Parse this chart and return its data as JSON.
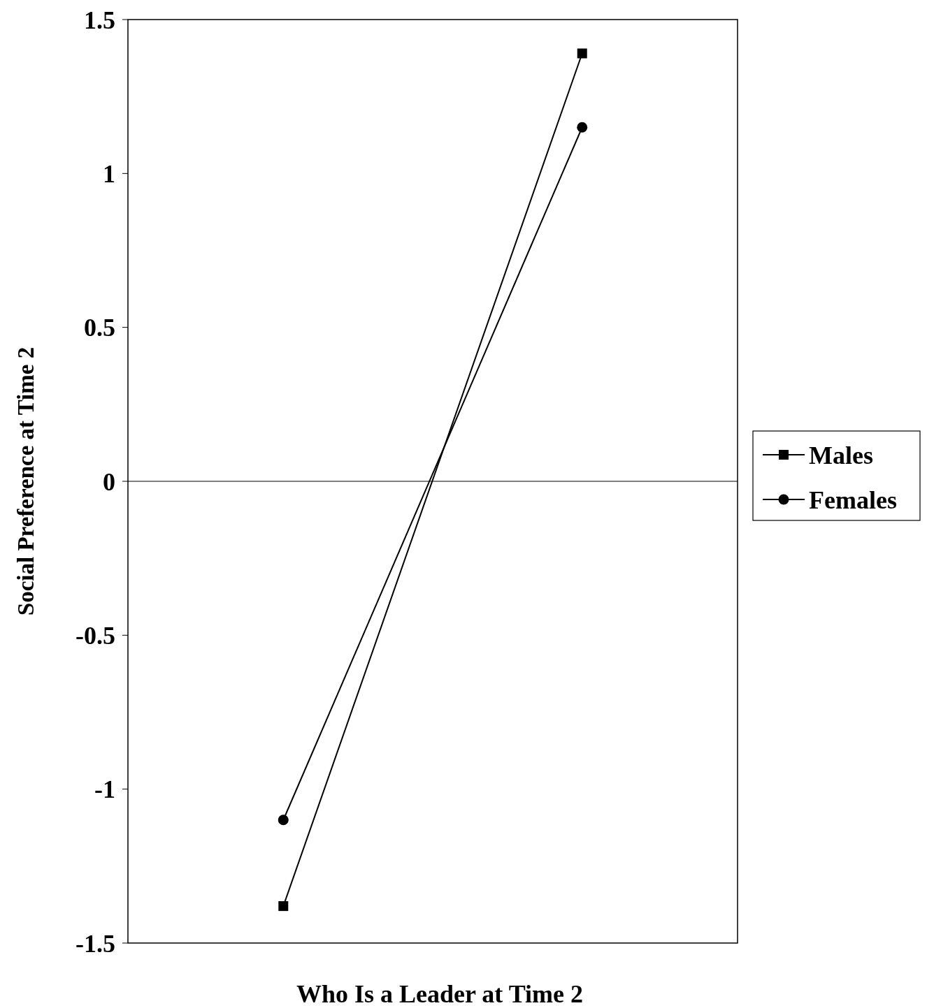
{
  "chart_data": {
    "type": "line",
    "xlabel": "Who Is a Leader at Time 2",
    "ylabel": "Social Preference at Time 2",
    "categories": [
      null,
      null
    ],
    "ylim": [
      -1.5,
      1.5
    ],
    "yticks": [
      {
        "value": -1.5,
        "label": "-1.5"
      },
      {
        "value": -1,
        "label": "-1"
      },
      {
        "value": -0.5,
        "label": "-0.5"
      },
      {
        "value": 0,
        "label": "0"
      },
      {
        "value": 0.5,
        "label": "0.5"
      },
      {
        "value": 1,
        "label": "1"
      },
      {
        "value": 1.5,
        "label": "1.5"
      }
    ],
    "tick_labels": "y",
    "legend": "right",
    "line_style": "solid",
    "series": [
      {
        "name": "Males",
        "color": "#000000",
        "marker": "square",
        "values": [
          -1.38,
          1.39
        ]
      },
      {
        "name": "Females",
        "color": "#000000",
        "marker": "circle",
        "values": [
          -1.1,
          1.15
        ]
      }
    ]
  }
}
